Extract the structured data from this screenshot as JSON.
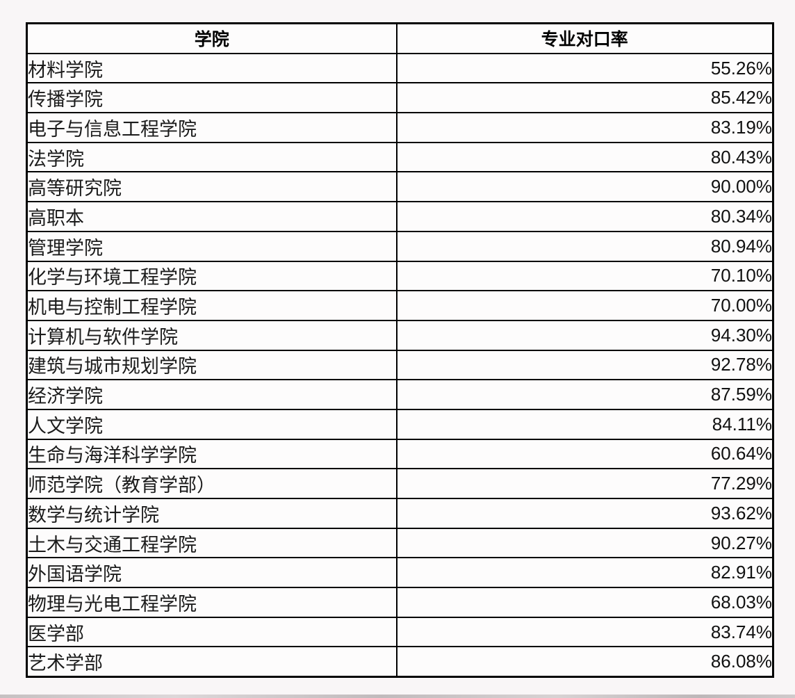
{
  "colors": {
    "page_background": "#f9f6f7",
    "cell_background": "#fdfcfc",
    "border": "#000000",
    "text": "#1a1a1a"
  },
  "table": {
    "headers": [
      "学院",
      "专业对口率"
    ],
    "rows": [
      {
        "college": "材料学院",
        "rate": "55.26%"
      },
      {
        "college": "传播学院",
        "rate": "85.42%"
      },
      {
        "college": "电子与信息工程学院",
        "rate": "83.19%"
      },
      {
        "college": "法学院",
        "rate": "80.43%"
      },
      {
        "college": "高等研究院",
        "rate": "90.00%"
      },
      {
        "college": "高职本",
        "rate": "80.34%"
      },
      {
        "college": "管理学院",
        "rate": "80.94%"
      },
      {
        "college": "化学与环境工程学院",
        "rate": "70.10%"
      },
      {
        "college": "机电与控制工程学院",
        "rate": "70.00%"
      },
      {
        "college": "计算机与软件学院",
        "rate": "94.30%"
      },
      {
        "college": "建筑与城市规划学院",
        "rate": "92.78%"
      },
      {
        "college": "经济学院",
        "rate": "87.59%"
      },
      {
        "college": "人文学院",
        "rate": "84.11%"
      },
      {
        "college": "生命与海洋科学学院",
        "rate": "60.64%"
      },
      {
        "college": "师范学院（教育学部）",
        "rate": "77.29%"
      },
      {
        "college": "数学与统计学院",
        "rate": "93.62%"
      },
      {
        "college": "土木与交通工程学院",
        "rate": "90.27%"
      },
      {
        "college": "外国语学院",
        "rate": "82.91%"
      },
      {
        "college": "物理与光电工程学院",
        "rate": "68.03%"
      },
      {
        "college": "医学部",
        "rate": "83.74%"
      },
      {
        "college": "艺术学部",
        "rate": "86.08%"
      }
    ]
  }
}
